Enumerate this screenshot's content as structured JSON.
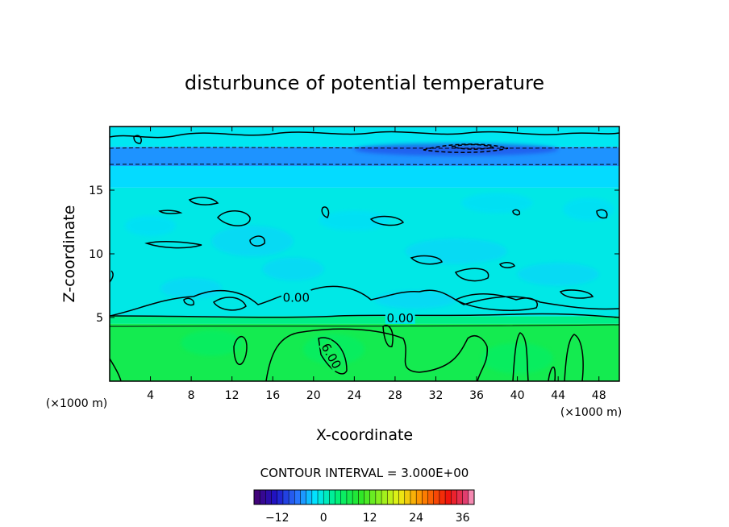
{
  "chart_data": {
    "type": "heatmap",
    "title": "disturbunce of potential temperature",
    "xlabel": "X-coordinate",
    "ylabel": "Z-coordinate",
    "x_unit": "(×1000 m)",
    "z_unit": "(×1000 m)",
    "xlim": [
      0,
      50
    ],
    "zlim": [
      0,
      20
    ],
    "x_ticks": [
      4,
      8,
      12,
      16,
      20,
      24,
      28,
      32,
      36,
      40,
      44,
      48
    ],
    "z_ticks": [
      5,
      10,
      15
    ],
    "contour_interval_label": "CONTOUR INTERVAL = 3.000E+00",
    "contour_interval": 3.0,
    "contour_labels": [
      {
        "text": "0.00",
        "x": 18.3,
        "z": 6.6
      },
      {
        "text": "0.00",
        "x": 28.5,
        "z": 5.0
      },
      {
        "text": "6.00",
        "x": 21.8,
        "z": 2.0
      }
    ],
    "colorbar": {
      "min": -18,
      "max": 39,
      "step": 1.5,
      "ticks": [
        -12,
        0,
        12,
        24,
        36
      ]
    },
    "field_bands": [
      {
        "z_from": 0.0,
        "z_to": 4.5,
        "value": 6.5
      },
      {
        "z_from": 4.5,
        "z_to": 5.1,
        "value": 3.0
      },
      {
        "z_from": 5.1,
        "z_to": 15.2,
        "value": -1.0
      },
      {
        "z_from": 15.2,
        "z_to": 16.9,
        "value": -2.5
      },
      {
        "z_from": 16.9,
        "z_to": 18.4,
        "value": -5.5
      },
      {
        "z_from": 18.4,
        "z_to": 20.0,
        "value": -1.5
      }
    ]
  }
}
